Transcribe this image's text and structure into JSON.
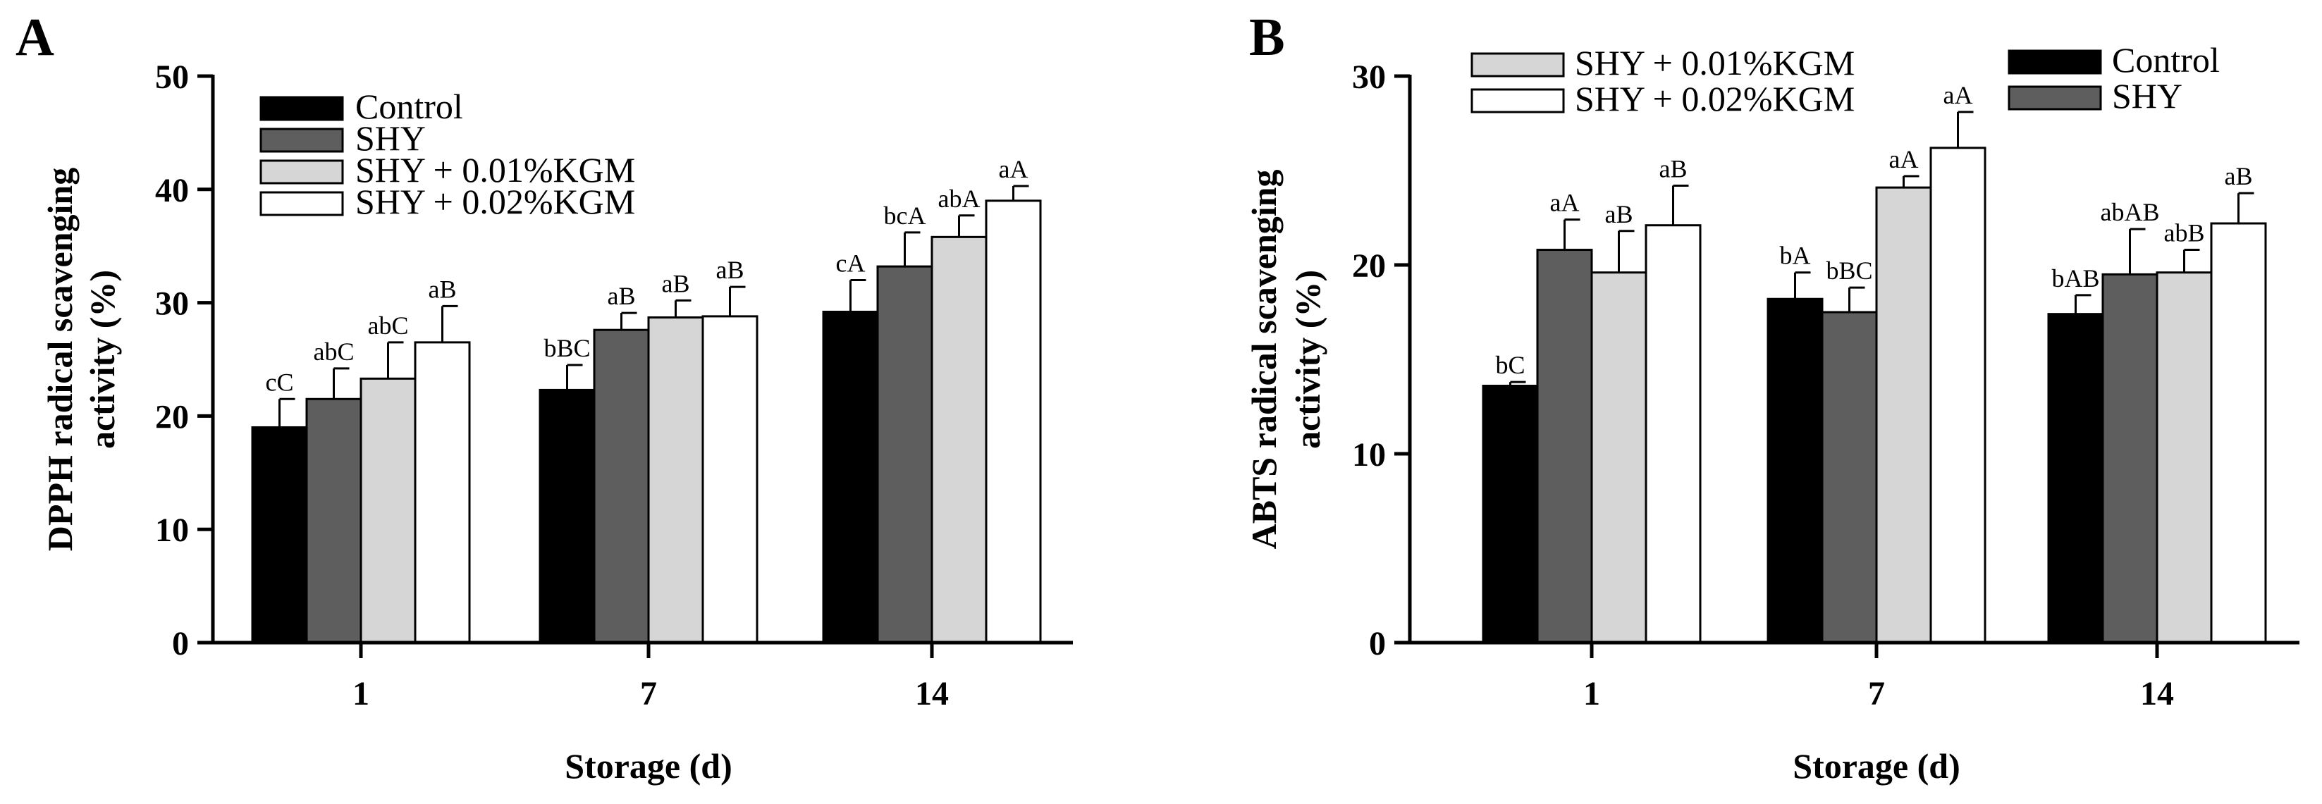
{
  "colors": {
    "control": "#000000",
    "shy": "#5e5e5e",
    "kgm001": "#d6d6d6",
    "kgm002": "#ffffff",
    "stroke": "#000000"
  },
  "chart_data": [
    {
      "type": "bar",
      "panel": "A",
      "categories": [
        "1",
        "7",
        "14"
      ],
      "xlabel": "Storage (d)",
      "ylabel": "DPPH radical scavenging activity (%)",
      "ylabel_lines": [
        "DPPH radical scavenging",
        "activity (%)"
      ],
      "ylim": [
        0,
        50
      ],
      "yticks": [
        "0",
        "10",
        "20",
        "30",
        "40",
        "50"
      ],
      "legend_position": "top-left",
      "series": [
        {
          "key": "control",
          "name": "Control",
          "values": [
            19,
            22.3,
            29.2
          ],
          "errors": [
            2.5,
            2.2,
            2.8
          ],
          "labels": [
            "cC",
            "bBC",
            "cA"
          ]
        },
        {
          "key": "shy",
          "name": "SHY",
          "values": [
            21.5,
            27.6,
            33.2
          ],
          "errors": [
            2.7,
            1.5,
            3.0
          ],
          "labels": [
            "abC",
            "aB",
            "bcA"
          ]
        },
        {
          "key": "kgm001",
          "name": "SHY + 0.01%KGM",
          "values": [
            23.3,
            28.7,
            35.8
          ],
          "errors": [
            3.2,
            1.5,
            1.9
          ],
          "labels": [
            "abC",
            "aB",
            "abA"
          ]
        },
        {
          "key": "kgm002",
          "name": "SHY + 0.02%KGM",
          "values": [
            26.5,
            28.8,
            39
          ],
          "errors": [
            3.2,
            2.6,
            1.3
          ],
          "labels": [
            "aB",
            "aB",
            "aA"
          ]
        }
      ]
    },
    {
      "type": "bar",
      "panel": "B",
      "categories": [
        "1",
        "7",
        "14"
      ],
      "xlabel": "Storage (d)",
      "ylabel": "ABTS radical scavenging activity (%)",
      "ylabel_lines": [
        "ABTS radical scavenging",
        "activity (%)"
      ],
      "ylim": [
        0,
        30
      ],
      "yticks": [
        "0",
        "10",
        "20",
        "30"
      ],
      "legend_position": "top",
      "series": [
        {
          "key": "control",
          "name": "Control",
          "values": [
            13.6,
            18.2,
            17.4
          ],
          "errors": [
            0.2,
            1.4,
            1.0
          ],
          "labels": [
            "bC",
            "bA",
            "bAB"
          ]
        },
        {
          "key": "shy",
          "name": "SHY",
          "values": [
            20.8,
            17.5,
            19.5
          ],
          "errors": [
            1.6,
            1.3,
            2.4
          ],
          "labels": [
            "aA",
            "bBC",
            "abAB"
          ]
        },
        {
          "key": "kgm001",
          "name": "SHY + 0.01%KGM",
          "values": [
            19.6,
            24.1,
            19.6
          ],
          "errors": [
            2.2,
            0.6,
            1.2
          ],
          "labels": [
            "aB",
            "aA",
            "abB"
          ]
        },
        {
          "key": "kgm002",
          "name": "SHY + 0.02%KGM",
          "values": [
            22.1,
            26.2,
            22.2
          ],
          "errors": [
            2.1,
            1.9,
            1.6
          ],
          "labels": [
            "aB",
            "aA",
            "aB"
          ]
        }
      ]
    }
  ]
}
